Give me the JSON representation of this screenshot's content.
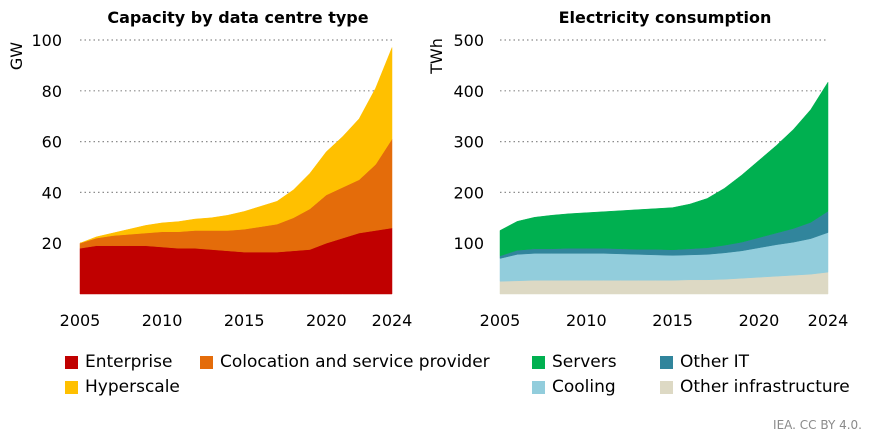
{
  "chart_data": [
    {
      "type": "area",
      "stacked": true,
      "title": "Capacity by data centre type",
      "ylabel": "GW",
      "ylim": [
        0,
        100
      ],
      "yticks": [
        20,
        40,
        60,
        80,
        100
      ],
      "xticks": [
        2005,
        2010,
        2015,
        2020,
        2024
      ],
      "grid": "horizontal dotted",
      "x": [
        2005,
        2006,
        2007,
        2008,
        2009,
        2010,
        2011,
        2012,
        2013,
        2014,
        2015,
        2016,
        2017,
        2018,
        2019,
        2020,
        2021,
        2022,
        2023,
        2024
      ],
      "series": [
        {
          "name": "Enterprise",
          "color": "#c00000",
          "values": [
            18,
            19,
            19,
            19,
            19,
            18.5,
            18,
            18,
            17.5,
            17,
            16.5,
            16.5,
            16.5,
            17,
            17.5,
            20,
            22,
            24,
            25,
            26
          ]
        },
        {
          "name": "Colocation and service provider",
          "color": "#e46c0a",
          "values": [
            2,
            3,
            4,
            4.5,
            5,
            6,
            6.5,
            7,
            7.5,
            8,
            9,
            10,
            11,
            13,
            16,
            19,
            20,
            21,
            26,
            35
          ]
        },
        {
          "name": "Hyperscale",
          "color": "#ffc000",
          "values": [
            0,
            0.5,
            1,
            2,
            3,
            3.5,
            4,
            4.5,
            5,
            6,
            7,
            8,
            9,
            11,
            14,
            17,
            20,
            24,
            30,
            36
          ]
        }
      ]
    },
    {
      "type": "area",
      "stacked": true,
      "title": "Electricity consumption",
      "ylabel": "TWh",
      "ylim": [
        0,
        500
      ],
      "yticks": [
        100,
        200,
        300,
        400,
        500
      ],
      "xticks": [
        2005,
        2010,
        2015,
        2020,
        2024
      ],
      "grid": "horizontal dotted",
      "x": [
        2005,
        2006,
        2007,
        2008,
        2009,
        2010,
        2011,
        2012,
        2013,
        2014,
        2015,
        2016,
        2017,
        2018,
        2019,
        2020,
        2021,
        2022,
        2023,
        2024
      ],
      "series": [
        {
          "name": "Other infrastructure",
          "color": "#ddd9c4",
          "values": [
            25,
            26,
            27,
            27,
            27,
            27,
            27,
            27,
            27,
            27,
            27,
            28,
            28,
            29,
            31,
            33,
            35,
            37,
            39,
            43
          ]
        },
        {
          "name": "Cooling",
          "color": "#92cddc",
          "values": [
            45,
            52,
            53,
            53,
            53,
            53,
            53,
            52,
            51,
            50,
            49,
            49,
            50,
            52,
            54,
            58,
            62,
            65,
            70,
            78
          ]
        },
        {
          "name": "Other IT",
          "color": "#31859c",
          "values": [
            5,
            8,
            9,
            9,
            10,
            10,
            10,
            10,
            10,
            11,
            11,
            12,
            13,
            15,
            17,
            20,
            23,
            27,
            32,
            42
          ]
        },
        {
          "name": "Servers",
          "color": "#00b050",
          "values": [
            50,
            57,
            62,
            66,
            68,
            70,
            72,
            75,
            78,
            80,
            83,
            88,
            97,
            112,
            132,
            152,
            172,
            195,
            222,
            254
          ]
        }
      ]
    }
  ],
  "legend": {
    "left": [
      {
        "label": "Enterprise",
        "color": "#c00000"
      },
      {
        "label": "Colocation and service provider",
        "color": "#e46c0a"
      },
      {
        "label": "Hyperscale",
        "color": "#ffc000"
      }
    ],
    "right": [
      {
        "label": "Servers",
        "color": "#00b050"
      },
      {
        "label": "Other IT",
        "color": "#31859c"
      },
      {
        "label": "Cooling",
        "color": "#92cddc"
      },
      {
        "label": "Other infrastructure",
        "color": "#ddd9c4"
      }
    ]
  },
  "source": "IEA. CC BY 4.0."
}
